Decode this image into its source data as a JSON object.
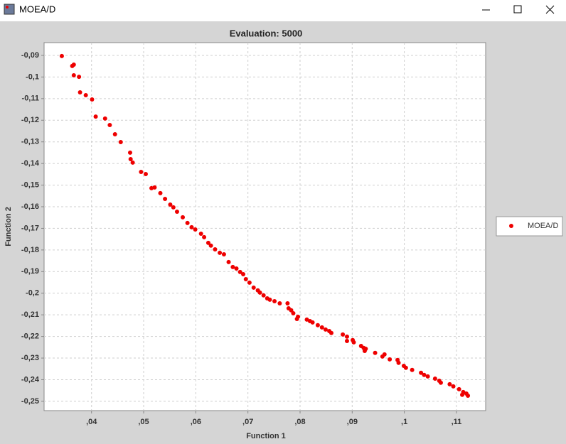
{
  "window": {
    "title": "MOEA/D"
  },
  "chart_data": {
    "type": "scatter",
    "title": "Evaluation: 5000",
    "xlabel": "Function 1",
    "ylabel": "Function 2",
    "grid": true,
    "legend": "right",
    "xlim": [
      0.0309,
      0.1156
    ],
    "ylim": [
      -0.2543,
      -0.0841
    ],
    "xticks": [
      {
        "value": 0.04,
        "label": ",04"
      },
      {
        "value": 0.05,
        "label": ",05"
      },
      {
        "value": 0.06,
        "label": ",06"
      },
      {
        "value": 0.07,
        "label": ",07"
      },
      {
        "value": 0.08,
        "label": ",08"
      },
      {
        "value": 0.09,
        "label": ",09"
      },
      {
        "value": 0.1,
        "label": ",1"
      },
      {
        "value": 0.11,
        "label": ",11"
      }
    ],
    "yticks": [
      {
        "value": -0.09,
        "label": "-0,09"
      },
      {
        "value": -0.1,
        "label": "-0,1"
      },
      {
        "value": -0.11,
        "label": "-0,11"
      },
      {
        "value": -0.12,
        "label": "-0,12"
      },
      {
        "value": -0.13,
        "label": "-0,13"
      },
      {
        "value": -0.14,
        "label": "-0,14"
      },
      {
        "value": -0.15,
        "label": "-0,15"
      },
      {
        "value": -0.16,
        "label": "-0,16"
      },
      {
        "value": -0.17,
        "label": "-0,17"
      },
      {
        "value": -0.18,
        "label": "-0,18"
      },
      {
        "value": -0.19,
        "label": "-0,19"
      },
      {
        "value": -0.2,
        "label": "-0,2"
      },
      {
        "value": -0.21,
        "label": "-0,21"
      },
      {
        "value": -0.22,
        "label": "-0,22"
      },
      {
        "value": -0.23,
        "label": "-0,23"
      },
      {
        "value": -0.24,
        "label": "-0,24"
      },
      {
        "value": -0.25,
        "label": "-0,25"
      }
    ],
    "series": [
      {
        "name": "MOEA/D",
        "color": "#ee0000",
        "x": [
          0.0343,
          0.0363,
          0.0366,
          0.0366,
          0.0376,
          0.0378,
          0.0389,
          0.0401,
          0.0408,
          0.0426,
          0.0435,
          0.0445,
          0.0456,
          0.0474,
          0.0475,
          0.0479,
          0.0495,
          0.0504,
          0.0515,
          0.0521,
          0.0532,
          0.0541,
          0.0551,
          0.0557,
          0.0564,
          0.0575,
          0.0584,
          0.0592,
          0.0599,
          0.061,
          0.0616,
          0.0624,
          0.0629,
          0.0637,
          0.0646,
          0.0654,
          0.0663,
          0.0671,
          0.0678,
          0.0685,
          0.0691,
          0.0696,
          0.0703,
          0.0711,
          0.0719,
          0.0723,
          0.073,
          0.0737,
          0.0742,
          0.0751,
          0.0761,
          0.0776,
          0.0778,
          0.0783,
          0.0787,
          0.0794,
          0.0796,
          0.0813,
          0.0819,
          0.0824,
          0.0834,
          0.0842,
          0.0849,
          0.0856,
          0.086,
          0.0882,
          0.089,
          0.089,
          0.0901,
          0.0903,
          0.0917,
          0.0922,
          0.0924,
          0.0926,
          0.0944,
          0.0958,
          0.0962,
          0.0972,
          0.0987,
          0.0989,
          0.0999,
          0.1003,
          0.1015,
          0.1032,
          0.1038,
          0.1045,
          0.1059,
          0.1067,
          0.107,
          0.1087,
          0.1094,
          0.1105,
          0.1111,
          0.1113,
          0.1119,
          0.1122
        ],
        "values": [
          -0.0903,
          -0.0949,
          -0.0943,
          -0.0992,
          -0.0999,
          -0.1071,
          -0.1084,
          -0.1104,
          -0.1183,
          -0.1192,
          -0.1222,
          -0.1265,
          -0.1301,
          -0.135,
          -0.138,
          -0.1396,
          -0.1439,
          -0.1449,
          -0.1514,
          -0.1511,
          -0.1537,
          -0.1564,
          -0.159,
          -0.1603,
          -0.1623,
          -0.1649,
          -0.1675,
          -0.1695,
          -0.1705,
          -0.1725,
          -0.1741,
          -0.1767,
          -0.178,
          -0.1797,
          -0.1813,
          -0.182,
          -0.1856,
          -0.1879,
          -0.1886,
          -0.1902,
          -0.1912,
          -0.1935,
          -0.1951,
          -0.1974,
          -0.1987,
          -0.1997,
          -0.201,
          -0.2024,
          -0.203,
          -0.2037,
          -0.2047,
          -0.2047,
          -0.207,
          -0.2079,
          -0.2093,
          -0.2119,
          -0.2109,
          -0.2122,
          -0.2129,
          -0.2135,
          -0.2148,
          -0.2158,
          -0.2168,
          -0.2175,
          -0.2184,
          -0.2191,
          -0.2201,
          -0.2221,
          -0.2217,
          -0.2227,
          -0.2244,
          -0.2253,
          -0.2267,
          -0.2257,
          -0.2276,
          -0.2293,
          -0.2283,
          -0.2306,
          -0.2309,
          -0.2322,
          -0.2336,
          -0.2345,
          -0.2355,
          -0.2368,
          -0.2378,
          -0.2385,
          -0.2395,
          -0.2405,
          -0.2414,
          -0.2421,
          -0.2431,
          -0.2444,
          -0.247,
          -0.2457,
          -0.2464,
          -0.2474
        ]
      }
    ]
  }
}
